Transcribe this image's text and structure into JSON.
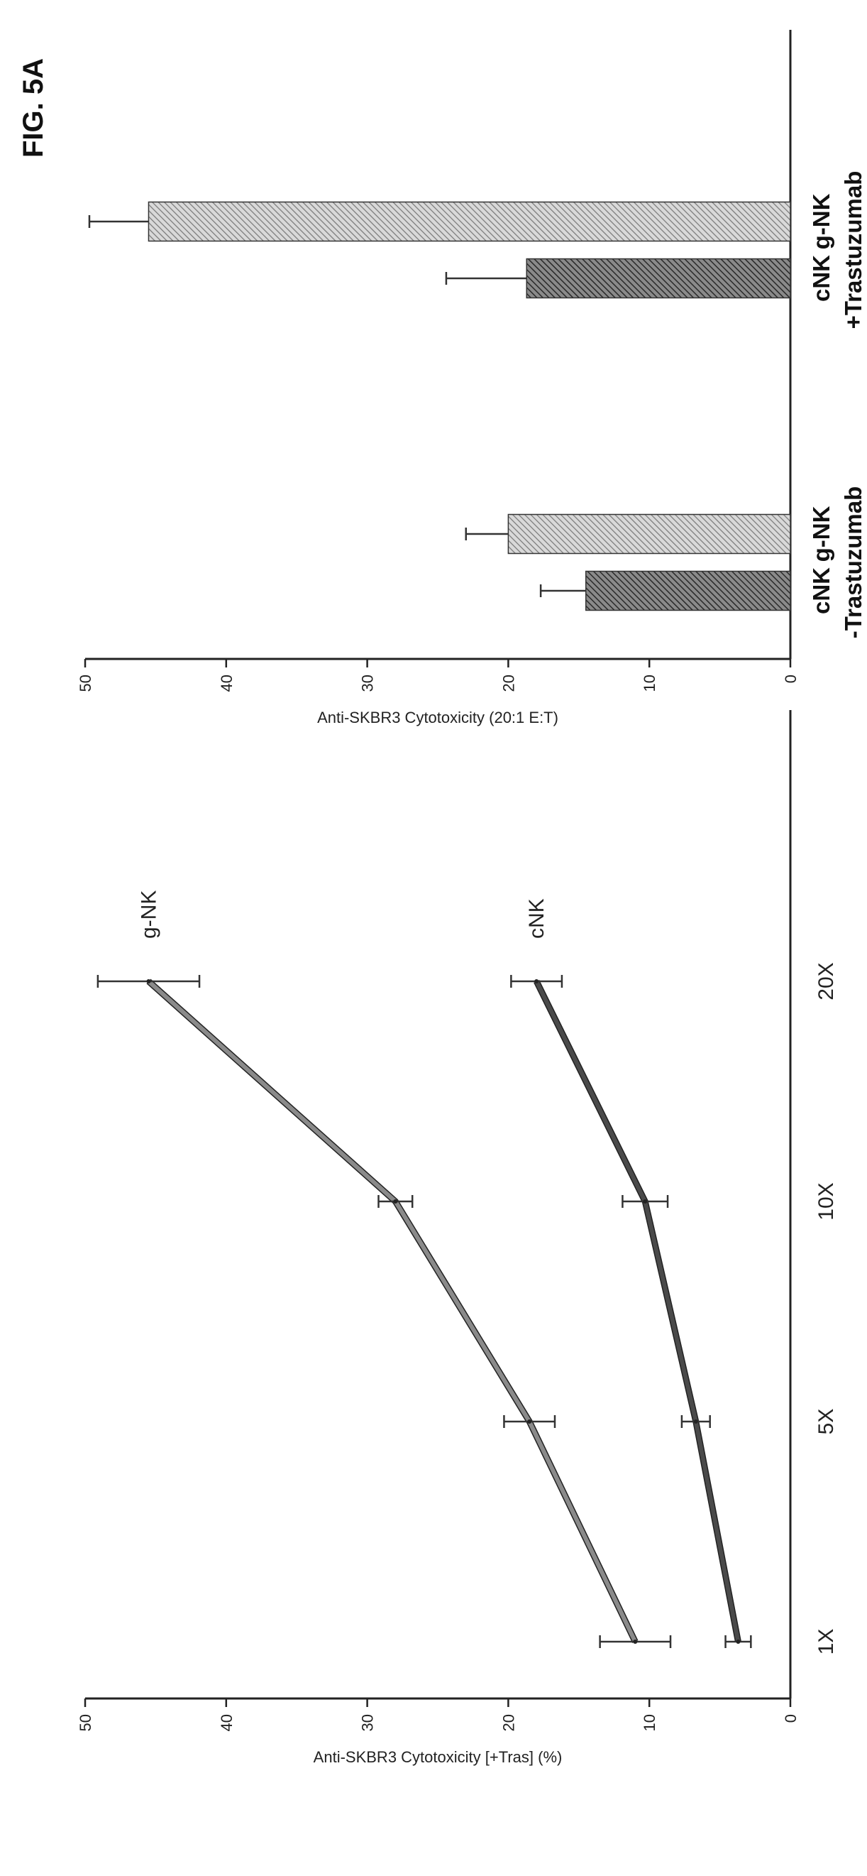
{
  "figure_label": "FIG. 5A",
  "line_panel": {
    "ylabel": "Anti-SKBR3 Cytotoxicity [+Tras] (%)"
  },
  "bar_panel": {
    "ylabel": "Anti-SKBR3 Cytotoxicity (20:1 E:T)",
    "group_labels": [
      "-Trastuzumab",
      "+Trastuzumab"
    ],
    "bar_labels": [
      "cNK",
      "g-NK",
      "cNK",
      "g-NK"
    ]
  },
  "colors": {
    "gNK_line": "#8a8a8a",
    "cNK_line": "#4a4a4a",
    "cNK_bar": "#555555",
    "gNK_bar": "#9a9a9a"
  },
  "chart_data": [
    {
      "type": "line",
      "x": [
        "1X",
        "5X",
        "10X",
        "20X"
      ],
      "ylabel": "Anti-SKBR3 Cytotoxicity [+Tras] (%)",
      "xlabel": "",
      "ylim": [
        0,
        50
      ],
      "yticks": [
        0,
        10,
        20,
        30,
        40,
        50
      ],
      "series": [
        {
          "name": "g-NK",
          "values": [
            11,
            18.5,
            28,
            45.5
          ],
          "errors": [
            2.5,
            1.8,
            1.2,
            3.6
          ]
        },
        {
          "name": "cNK",
          "values": [
            3.7,
            6.7,
            10.3,
            18
          ],
          "errors": [
            0.9,
            1.0,
            1.6,
            1.8
          ]
        }
      ],
      "grid": false,
      "legend": "inline labels at line ends"
    },
    {
      "type": "bar",
      "categories": [
        "cNK",
        "g-NK",
        "cNK",
        "g-NK"
      ],
      "groups": [
        "-Trastuzumab",
        "+Trastuzumab"
      ],
      "values": [
        14.5,
        20,
        18.7,
        45.5
      ],
      "errors": [
        3.2,
        3.0,
        5.7,
        4.2
      ],
      "ylabel": "Anti-SKBR3 Cytotoxicity (20:1 E:T)",
      "xlabel": "",
      "ylim": [
        0,
        50
      ],
      "yticks": [
        0,
        10,
        20,
        30,
        40,
        50
      ],
      "grid": false
    }
  ]
}
